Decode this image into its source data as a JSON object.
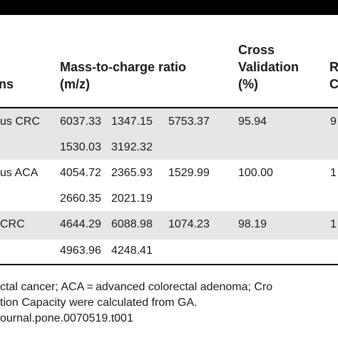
{
  "table": {
    "headers": {
      "col1": "ns",
      "col2_line1": "Mass-to-charge ratio",
      "col2_line2": "(m/z)",
      "col3_line1": "Cross",
      "col3_line2": "Validation",
      "col3_line3": "(%)",
      "col4_line2": "R",
      "col4_line3": "C"
    },
    "rows": [
      {
        "label": "us CRC",
        "mz": [
          "6037.33",
          "1347.15",
          "5753.37"
        ],
        "cv": "95.94",
        "rc": "9"
      },
      {
        "label": "",
        "mz": [
          "1530.03",
          "3192.32",
          ""
        ],
        "cv": "",
        "rc": ""
      },
      {
        "label": "us ACA",
        "mz": [
          "4054.72",
          "2365.93",
          "1529.99"
        ],
        "cv": "100.00",
        "rc": "1"
      },
      {
        "label": "",
        "mz": [
          "2660.35",
          "2021.19",
          ""
        ],
        "cv": "",
        "rc": ""
      },
      {
        "label": "CRC",
        "mz": [
          "4644.29",
          "6088.98",
          "1074.23"
        ],
        "cv": "98.19",
        "rc": "1"
      },
      {
        "label": "",
        "mz": [
          "4963.96",
          "4248.41",
          ""
        ],
        "cv": "",
        "rc": ""
      }
    ]
  },
  "footnotes": {
    "line1": "ctal cancer; ACA = advanced colorectal adenoma; Cro",
    "line2": "tion Capacity were calculated from GA.",
    "line3": "ournal.pone.0070519.t001"
  }
}
